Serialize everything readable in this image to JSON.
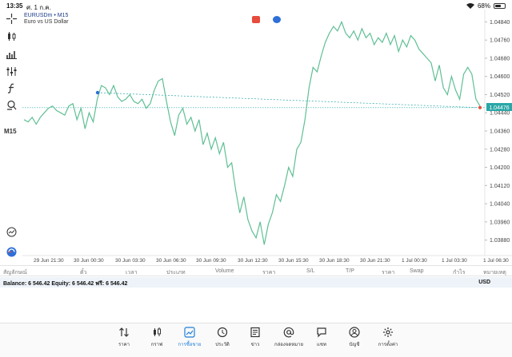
{
  "statusbar": {
    "time": "13:35",
    "date": "ศ. 1 ก.ค.",
    "battery": "68%",
    "battery_level": 0.68
  },
  "toolbar": {
    "timeframe": "M15"
  },
  "symbol": {
    "name": "EURUSDm • M15",
    "description": "Euro vs US Dollar"
  },
  "colors": {
    "line": "#5fbf95",
    "level": "#2aa7a7",
    "current_price": "#2aa7a7",
    "accent": "#1e7fd8",
    "sell": "#e74c3c",
    "buy": "#2e6fd8"
  },
  "chart_data": {
    "type": "line",
    "y_ticks": [
      "1.04840",
      "1.04760",
      "1.04680",
      "1.04600",
      "1.04520",
      "1.04440",
      "1.04360",
      "1.04280",
      "1.04200",
      "1.04120",
      "1.04040",
      "1.03960",
      "1.03880"
    ],
    "x_ticks": [
      "29 Jun 21:30",
      "30 Jun 00:30",
      "30 Jun 03:30",
      "30 Jun 06:30",
      "30 Jun 09:30",
      "30 Jun 12:30",
      "30 Jun 15:30",
      "30 Jun 18:30",
      "30 Jun 21:30",
      "1 Jul 00:30",
      "1 Jul 03:30",
      "1 Jul 06:30"
    ],
    "current_price": "1.04476",
    "ylim": [
      1.0384,
      1.0488
    ],
    "values": [
      1.0441,
      1.044,
      1.0442,
      1.0439,
      1.0442,
      1.0444,
      1.0446,
      1.0447,
      1.0445,
      1.0444,
      1.0443,
      1.0447,
      1.0448,
      1.0441,
      1.0446,
      1.0437,
      1.0444,
      1.044,
      1.045,
      1.0456,
      1.0455,
      1.0452,
      1.0456,
      1.0451,
      1.0449,
      1.045,
      1.0452,
      1.0449,
      1.0448,
      1.045,
      1.0446,
      1.0448,
      1.0454,
      1.0458,
      1.0459,
      1.0449,
      1.044,
      1.0434,
      1.0443,
      1.0446,
      1.0439,
      1.0442,
      1.0436,
      1.0441,
      1.043,
      1.0435,
      1.0428,
      1.0433,
      1.0426,
      1.0431,
      1.042,
      1.0422,
      1.041,
      1.04,
      1.0407,
      1.0397,
      1.0392,
      1.0389,
      1.0396,
      1.0386,
      1.0395,
      1.04,
      1.0408,
      1.0405,
      1.0412,
      1.042,
      1.0416,
      1.0428,
      1.0431,
      1.0441,
      1.0455,
      1.0464,
      1.0462,
      1.0469,
      1.0475,
      1.0479,
      1.0482,
      1.048,
      1.0484,
      1.0479,
      1.0477,
      1.048,
      1.0476,
      1.0481,
      1.0477,
      1.0479,
      1.0474,
      1.0477,
      1.0475,
      1.0479,
      1.0474,
      1.0478,
      1.0471,
      1.0476,
      1.0473,
      1.0478,
      1.0476,
      1.0472,
      1.047,
      1.0468,
      1.0466,
      1.0458,
      1.0465,
      1.0455,
      1.0452,
      1.046,
      1.0454,
      1.045,
      1.0461,
      1.0464,
      1.0461,
      1.045,
      1.0447
    ]
  },
  "table_headers": [
    "สัญลักษณ์",
    "ตั๋ว",
    "เวลา",
    "ประเภท",
    "Volume",
    "ราคา",
    "S/L",
    "T/P",
    "ราคา",
    "Swap",
    "กำไร",
    "หมายเหตุ"
  ],
  "balance": {
    "text": "Balance: 6 546.42 Equity: 6 546.42 ฟรี: 6 546.42",
    "currency": "USD"
  },
  "nav": [
    {
      "label": "ราคา",
      "icon": "arrows-updown-icon"
    },
    {
      "label": "กราฟ",
      "icon": "candles-icon"
    },
    {
      "label": "การซื้อขาย",
      "icon": "trade-chart-icon"
    },
    {
      "label": "ประวัติ",
      "icon": "history-icon"
    },
    {
      "label": "ข่าว",
      "icon": "news-icon"
    },
    {
      "label": "กล่องจดหมาย",
      "icon": "mail-at-icon"
    },
    {
      "label": "แชท",
      "icon": "chat-icon"
    },
    {
      "label": "บัญชี",
      "icon": "account-icon"
    },
    {
      "label": "การตั้งค่า",
      "icon": "gear-icon"
    }
  ]
}
